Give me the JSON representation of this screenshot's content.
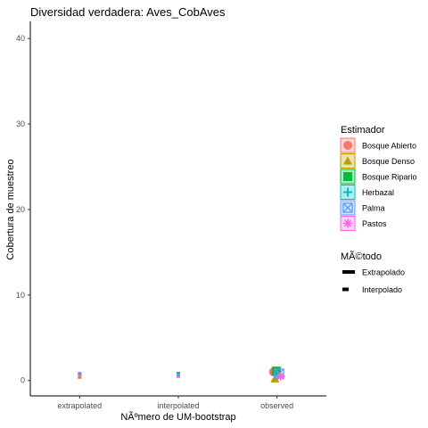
{
  "chart_data": {
    "type": "scatter",
    "title": "Diversidad verdadera: Aves_CobAves",
    "xlabel": "NÃºmero de UM-bootstrap",
    "ylabel": "Cobertura de muestreo",
    "categories": [
      "extrapolated",
      "interpolated",
      "observed"
    ],
    "ylim": [
      -1.8,
      42
    ],
    "yticks": [
      0,
      10,
      20,
      30,
      40
    ],
    "grid": false,
    "legend_position": "right",
    "legend_estimador": {
      "title": "Estimador",
      "items": [
        {
          "label": "Bosque Abierto",
          "color": "#F8766D",
          "shape": "circle"
        },
        {
          "label": "Bosque Denso",
          "color": "#B79F00",
          "shape": "triangle"
        },
        {
          "label": "Bosque Ripario",
          "color": "#00BA38",
          "shape": "square"
        },
        {
          "label": "Herbazal",
          "color": "#00BFC4",
          "shape": "plus"
        },
        {
          "label": "Palma",
          "color": "#619CFF",
          "shape": "boxx"
        },
        {
          "label": "Pastos",
          "color": "#F564E3",
          "shape": "asterisk"
        }
      ]
    },
    "legend_metodo": {
      "title": "MÃ©todo",
      "items": [
        {
          "label": "Extrapolado",
          "style": "solid"
        },
        {
          "label": "Interpolado",
          "style": "dashed"
        }
      ]
    },
    "series": [
      {
        "name": "Bosque Abierto",
        "color": "#F8766D",
        "shape": "circle",
        "points": [
          {
            "x": "extrapolated",
            "y": 0.4
          },
          {
            "x": "interpolated",
            "y": 0.6
          },
          {
            "x": "observed",
            "y": 1.0
          }
        ]
      },
      {
        "name": "Bosque Denso",
        "color": "#B79F00",
        "shape": "triangle",
        "points": [
          {
            "x": "extrapolated",
            "y": 0.3
          },
          {
            "x": "interpolated",
            "y": 0.5
          },
          {
            "x": "observed",
            "y": 0.2
          }
        ]
      },
      {
        "name": "Bosque Ripario",
        "color": "#00BA38",
        "shape": "square",
        "points": [
          {
            "x": "extrapolated",
            "y": 0.8
          },
          {
            "x": "interpolated",
            "y": 0.9
          },
          {
            "x": "observed",
            "y": 1.1
          }
        ]
      },
      {
        "name": "Herbazal",
        "color": "#00BFC4",
        "shape": "plus",
        "points": [
          {
            "x": "extrapolated",
            "y": 0.7
          },
          {
            "x": "interpolated",
            "y": 0.8
          },
          {
            "x": "observed",
            "y": 0.6
          }
        ]
      },
      {
        "name": "Palma",
        "color": "#619CFF",
        "shape": "boxx",
        "points": [
          {
            "x": "extrapolated",
            "y": 0.9
          },
          {
            "x": "interpolated",
            "y": 0.7
          },
          {
            "x": "observed",
            "y": 0.8
          }
        ]
      },
      {
        "name": "Pastos",
        "color": "#F564E3",
        "shape": "asterisk",
        "points": [
          {
            "x": "extrapolated",
            "y": 0.6
          },
          {
            "x": "interpolated",
            "y": 0.4
          },
          {
            "x": "observed",
            "y": 0.5
          }
        ]
      }
    ]
  }
}
